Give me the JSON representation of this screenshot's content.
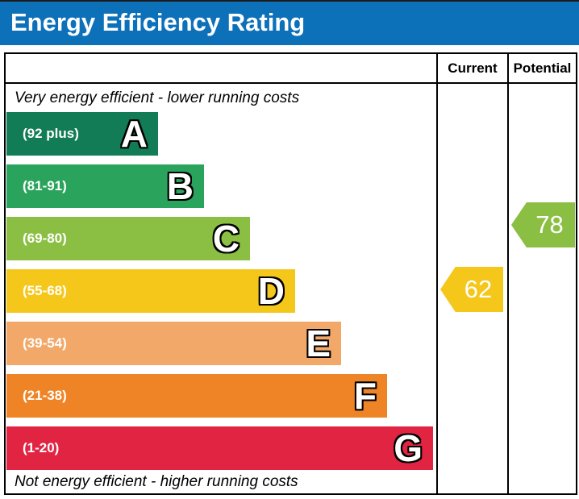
{
  "header": {
    "title": "Energy Efficiency Rating",
    "bg_color": "#0d71b9"
  },
  "columns": [
    {
      "label": "Current"
    },
    {
      "label": "Potential"
    }
  ],
  "chart_data": {
    "type": "bar",
    "title": "Energy Efficiency Rating",
    "top_caption": "Very energy efficient - lower running costs",
    "bottom_caption": "Not energy efficient - higher running costs",
    "bands": [
      {
        "letter": "A",
        "range_label": "(92 plus)",
        "min": 92,
        "max": 100,
        "color": "#127c56"
      },
      {
        "letter": "B",
        "range_label": "(81-91)",
        "min": 81,
        "max": 91,
        "color": "#2aa45c"
      },
      {
        "letter": "C",
        "range_label": "(69-80)",
        "min": 69,
        "max": 80,
        "color": "#8bbf43"
      },
      {
        "letter": "D",
        "range_label": "(55-68)",
        "min": 55,
        "max": 68,
        "color": "#f5c71b"
      },
      {
        "letter": "E",
        "range_label": "(39-54)",
        "min": 39,
        "max": 54,
        "color": "#f2a868"
      },
      {
        "letter": "F",
        "range_label": "(21-38)",
        "min": 21,
        "max": 38,
        "color": "#ee8426"
      },
      {
        "letter": "G",
        "range_label": "(1-20)",
        "min": 1,
        "max": 20,
        "color": "#e22443"
      }
    ],
    "ratings": {
      "current": {
        "value": 62,
        "band": "D",
        "color": "#f5c71b"
      },
      "potential": {
        "value": 78,
        "band": "C",
        "color": "#8bbf43"
      }
    }
  }
}
